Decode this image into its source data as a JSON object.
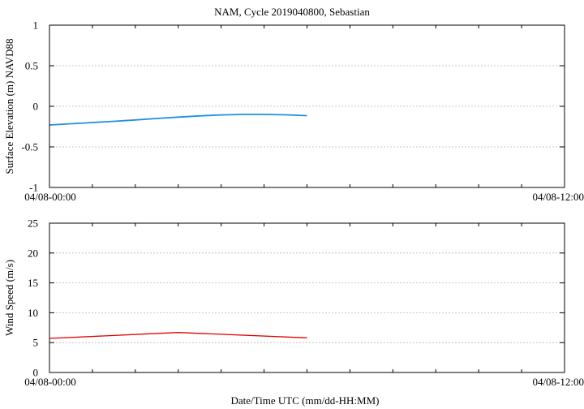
{
  "title": "NAM, Cycle 2019040800,  Sebastian",
  "xlabel": "Date/Time UTC (mm/dd-HH:MM)",
  "chart_data": [
    {
      "type": "line",
      "ylabel": "Surface Elevation (m) NAVD88",
      "ylim": [
        -1,
        1
      ],
      "yticks": [
        -1,
        -0.5,
        0,
        0.5,
        1
      ],
      "ytick_labels": [
        "-1",
        "-0.5",
        "0",
        "0.5",
        "1"
      ],
      "xlim_hours": [
        0,
        12
      ],
      "xtick_labels": [
        "04/08-00:00",
        "04/08-12:00"
      ],
      "grid": true,
      "series": [
        {
          "color": "#1e90e0",
          "x_hours": [
            0,
            0.5,
            1,
            1.5,
            2,
            2.5,
            3,
            3.5,
            4,
            4.5,
            5,
            5.5,
            6
          ],
          "values": [
            -0.23,
            -0.215,
            -0.2,
            -0.185,
            -0.168,
            -0.15,
            -0.133,
            -0.118,
            -0.106,
            -0.1,
            -0.1,
            -0.105,
            -0.115
          ]
        }
      ]
    },
    {
      "type": "line",
      "ylabel": "Wind Speed (m/s)",
      "ylim": [
        0,
        25
      ],
      "yticks": [
        0,
        5,
        10,
        15,
        20,
        25
      ],
      "ytick_labels": [
        "0",
        "5",
        "10",
        "15",
        "20",
        "25"
      ],
      "xlim_hours": [
        0,
        12
      ],
      "xtick_labels": [
        "04/08-00:00",
        "04/08-12:00"
      ],
      "grid": true,
      "series": [
        {
          "color": "#e00000",
          "x_hours": [
            0,
            3,
            6
          ],
          "values": [
            5.7,
            6.7,
            5.8
          ]
        }
      ]
    }
  ]
}
